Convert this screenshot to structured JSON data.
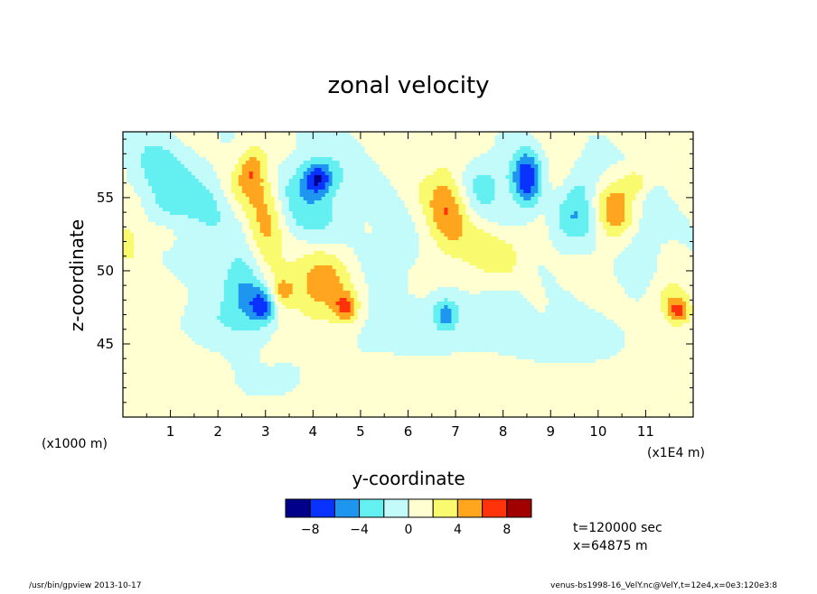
{
  "chart_data": {
    "type": "heatmap",
    "title": "zonal velocity",
    "xlabel": "y-coordinate",
    "ylabel": "z-coordinate",
    "x_scale_note": "(x1E4 m)",
    "y_scale_note": "(x1000 m)",
    "x_ticks": [
      "1",
      "2",
      "3",
      "4",
      "5",
      "6",
      "7",
      "8",
      "9",
      "10",
      "11"
    ],
    "y_ticks": [
      "45",
      "50",
      "55"
    ],
    "xlim": [
      0,
      12
    ],
    "ylim": [
      40,
      59.5
    ],
    "colorbar": {
      "levels": [
        -10,
        -8,
        -6,
        -4,
        -2,
        0,
        2,
        4,
        6,
        8,
        10
      ],
      "tick_labels": [
        "-8",
        "-4",
        "0",
        "4",
        "8"
      ],
      "colors": [
        "#00008b",
        "#0a32ff",
        "#1e96f0",
        "#64f0f0",
        "#c3fafa",
        "#ffffd2",
        "#fafa6e",
        "#ffa51e",
        "#ff320a",
        "#a00000"
      ]
    },
    "background_level": 0.5,
    "features": [
      {
        "x": 0.55,
        "z": 56.7,
        "sx": 0.45,
        "sz": 1.8,
        "v": -3.5
      },
      {
        "x": 0.2,
        "z": 53.5,
        "sx": 0.35,
        "sz": 2.2,
        "v": 2.6
      },
      {
        "x": 1.0,
        "z": 54.2,
        "sx": 0.4,
        "sz": 1.8,
        "v": -3.2
      },
      {
        "x": 0.85,
        "z": 52.5,
        "sx": 0.25,
        "sz": 0.8,
        "v": 2.1
      },
      {
        "x": 1.8,
        "z": 53.8,
        "sx": 0.35,
        "sz": 3.2,
        "v": -1.8
      },
      {
        "x": 2.5,
        "z": 55.5,
        "sx": 0.25,
        "sz": 1.0,
        "v": 1.8
      },
      {
        "x": 2.6,
        "z": 48.8,
        "sx": 0.35,
        "sz": 1.8,
        "v": -5.2
      },
      {
        "x": 2.95,
        "z": 47.6,
        "sx": 0.2,
        "sz": 0.9,
        "v": -6.5
      },
      {
        "x": 3.0,
        "z": 53.0,
        "sx": 0.28,
        "sz": 3.5,
        "v": 4.8
      },
      {
        "x": 2.7,
        "z": 57.0,
        "sx": 0.2,
        "sz": 1.0,
        "v": 4.5
      },
      {
        "x": 3.35,
        "z": 48.6,
        "sx": 0.18,
        "sz": 0.7,
        "v": 3.5
      },
      {
        "x": 4.0,
        "z": 54.5,
        "sx": 0.8,
        "sz": 2.8,
        "v": -3.5
      },
      {
        "x": 4.1,
        "z": 56.3,
        "sx": 0.22,
        "sz": 0.8,
        "v": -7.0
      },
      {
        "x": 3.95,
        "z": 49.2,
        "sx": 0.45,
        "sz": 2.0,
        "v": 3.3
      },
      {
        "x": 4.4,
        "z": 49.5,
        "sx": 0.35,
        "sz": 2.0,
        "v": 3.0
      },
      {
        "x": 4.7,
        "z": 47.5,
        "sx": 0.18,
        "sz": 0.7,
        "v": 5.5
      },
      {
        "x": 5.6,
        "z": 51.0,
        "sx": 0.35,
        "sz": 1.2,
        "v": -1.8
      },
      {
        "x": 6.85,
        "z": 54.5,
        "sx": 0.32,
        "sz": 2.3,
        "v": 5.2
      },
      {
        "x": 7.6,
        "z": 56.0,
        "sx": 0.45,
        "sz": 1.4,
        "v": -3.5
      },
      {
        "x": 7.6,
        "z": 51.5,
        "sx": 0.3,
        "sz": 1.2,
        "v": 2.5
      },
      {
        "x": 8.1,
        "z": 51.0,
        "sx": 0.25,
        "sz": 1.0,
        "v": 2.4
      },
      {
        "x": 8.5,
        "z": 56.2,
        "sx": 0.22,
        "sz": 1.4,
        "v": -8.0
      },
      {
        "x": 6.8,
        "z": 47.0,
        "sx": 0.2,
        "sz": 0.8,
        "v": -5.0
      },
      {
        "x": 9.45,
        "z": 53.5,
        "sx": 0.35,
        "sz": 1.4,
        "v": -4.0
      },
      {
        "x": 9.2,
        "z": 56.0,
        "sx": 0.3,
        "sz": 1.3,
        "v": 2.2
      },
      {
        "x": 9.7,
        "z": 56.3,
        "sx": 0.35,
        "sz": 1.2,
        "v": -3.2
      },
      {
        "x": 10.35,
        "z": 54.0,
        "sx": 0.3,
        "sz": 1.5,
        "v": 5.0
      },
      {
        "x": 10.8,
        "z": 56.0,
        "sx": 0.2,
        "sz": 0.7,
        "v": 3.5
      },
      {
        "x": 10.9,
        "z": 52.5,
        "sx": 0.35,
        "sz": 2.0,
        "v": -2.2
      },
      {
        "x": 11.55,
        "z": 48.0,
        "sx": 0.25,
        "sz": 1.0,
        "v": 3.0
      },
      {
        "x": 11.7,
        "z": 47.2,
        "sx": 0.16,
        "sz": 0.6,
        "v": 5.0
      },
      {
        "x": 8.0,
        "z": 47.5,
        "sx": 0.25,
        "sz": 0.8,
        "v": -2.0
      },
      {
        "x": 2.0,
        "z": 46.5,
        "sx": 0.5,
        "sz": 1.0,
        "v": -1.6
      },
      {
        "x": 5.5,
        "z": 46.5,
        "sx": 1.5,
        "sz": 2.0,
        "v": -0.8
      },
      {
        "x": 9.5,
        "z": 45.5,
        "sx": 1.8,
        "sz": 3.0,
        "v": -0.6
      },
      {
        "x": 3.0,
        "z": 42.5,
        "sx": 1.0,
        "sz": 2.0,
        "v": -0.6
      }
    ]
  },
  "annotations": {
    "time": "t=120000 sec",
    "position": "x=64875 m"
  },
  "footer": {
    "left": "/usr/bin/gpview  2013-10-17",
    "right": "venus-bs1998-16_VelY.nc@VelY,t=12e4,x=0e3:120e3:8"
  }
}
